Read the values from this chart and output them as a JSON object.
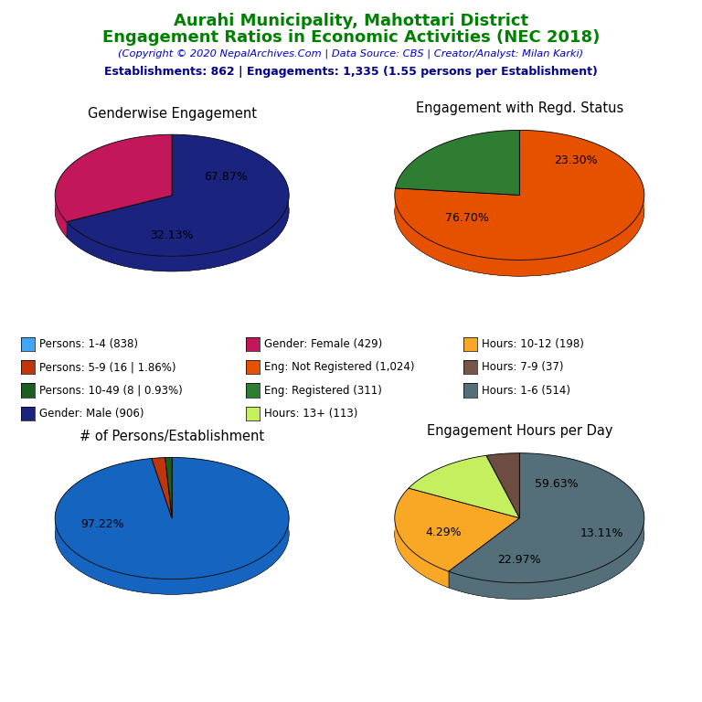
{
  "title_line1": "Aurahi Municipality, Mahottari District",
  "title_line2": "Engagement Ratios in Economic Activities (NEC 2018)",
  "title_color": "#008000",
  "copyright_text": "(Copyright © 2020 NepalArchives.Com | Data Source: CBS | Creator/Analyst: Milan Karki)",
  "copyright_color": "#0000CD",
  "stats_text": "Establishments: 862 | Engagements: 1,335 (1.55 persons per Establishment)",
  "stats_color": "#00008B",
  "pie1_title": "Genderwise Engagement",
  "pie1_values": [
    67.87,
    32.13
  ],
  "pie1_colors": [
    "#1a237e",
    "#c2185b"
  ],
  "pie1_labels": [
    "67.87%",
    "32.13%"
  ],
  "pie1_label_angles": [
    33.0,
    270.0
  ],
  "pie1_label_radii": [
    0.55,
    0.65
  ],
  "pie2_title": "Engagement with Regd. Status",
  "pie2_values": [
    76.7,
    23.3
  ],
  "pie2_colors": [
    "#e65100",
    "#2e7d32"
  ],
  "pie2_labels": [
    "76.70%",
    "23.30%"
  ],
  "pie2_label_angles": [
    220.0,
    50.0
  ],
  "pie2_label_radii": [
    0.55,
    0.7
  ],
  "pie3_title": "# of Persons/Establishment",
  "pie3_values": [
    97.22,
    1.86,
    0.93
  ],
  "pie3_colors": [
    "#1565c0",
    "#bf360c",
    "#1b5e20"
  ],
  "pie3_labels": [
    "97.22%",
    "",
    ""
  ],
  "pie3_label_angles": [
    190.0,
    0.0,
    0.0
  ],
  "pie3_label_radii": [
    0.6,
    0.0,
    0.0
  ],
  "pie4_title": "Engagement Hours per Day",
  "pie4_values": [
    59.63,
    22.97,
    13.11,
    4.29
  ],
  "pie4_colors": [
    "#546e7a",
    "#f9a825",
    "#c6ef60",
    "#6d4c41"
  ],
  "pie4_labels": [
    "59.63%",
    "22.97%",
    "13.11%",
    "4.29%"
  ],
  "pie4_label_angles": [
    60.0,
    270.0,
    340.0,
    200.0
  ],
  "pie4_label_radii": [
    0.6,
    0.65,
    0.7,
    0.65
  ],
  "legend_items": [
    {
      "label": "Persons: 1-4 (838)",
      "color": "#42a5f5"
    },
    {
      "label": "Persons: 5-9 (16 | 1.86%)",
      "color": "#bf360c"
    },
    {
      "label": "Persons: 10-49 (8 | 0.93%)",
      "color": "#1b5e20"
    },
    {
      "label": "Gender: Male (906)",
      "color": "#1a237e"
    },
    {
      "label": "Gender: Female (429)",
      "color": "#c2185b"
    },
    {
      "label": "Eng: Not Registered (1,024)",
      "color": "#e65100"
    },
    {
      "label": "Eng: Registered (311)",
      "color": "#2e7d32"
    },
    {
      "label": "Hours: 13+ (113)",
      "color": "#c6ef60"
    },
    {
      "label": "Hours: 10-12 (198)",
      "color": "#f9a825"
    },
    {
      "label": "Hours: 7-9 (37)",
      "color": "#795548"
    },
    {
      "label": "Hours: 1-6 (514)",
      "color": "#546e7a"
    }
  ],
  "background_color": "#ffffff"
}
